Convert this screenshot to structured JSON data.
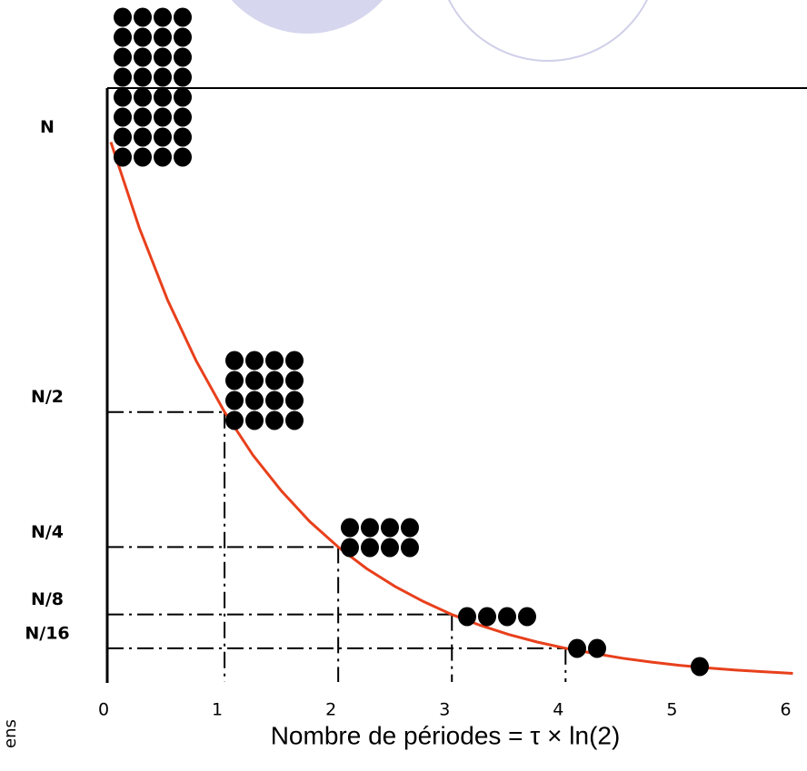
{
  "chart_data": {
    "type": "line",
    "x_label": "Nombre de périodes = τ × ln(2)",
    "side_label": "ens",
    "x": [
      0,
      0.25,
      0.5,
      0.75,
      1,
      1.25,
      1.5,
      1.75,
      2,
      2.25,
      2.5,
      2.75,
      3,
      3.25,
      3.5,
      3.75,
      4,
      4.25,
      4.5,
      4.75,
      5,
      5.25,
      5.5,
      5.75,
      6
    ],
    "values": [
      1,
      0.841,
      0.707,
      0.595,
      0.5,
      0.42,
      0.354,
      0.297,
      0.25,
      0.21,
      0.177,
      0.149,
      0.125,
      0.105,
      0.088,
      0.074,
      0.0625,
      0.053,
      0.044,
      0.037,
      0.031,
      0.026,
      0.022,
      0.019,
      0.016
    ],
    "color": "#e8401c",
    "xlim": [
      0,
      6.1
    ],
    "xticks": [
      0,
      1,
      2,
      3,
      4,
      5,
      6
    ],
    "ylim": [
      0,
      1.1
    ],
    "yticks": [
      {
        "value": 1,
        "label": "N"
      },
      {
        "value": 0.5,
        "label": "N/2"
      },
      {
        "value": 0.25,
        "label": "N/4"
      },
      {
        "value": 0.125,
        "label": "N/8"
      },
      {
        "value": 0.0625,
        "label": "N/16"
      }
    ]
  }
}
